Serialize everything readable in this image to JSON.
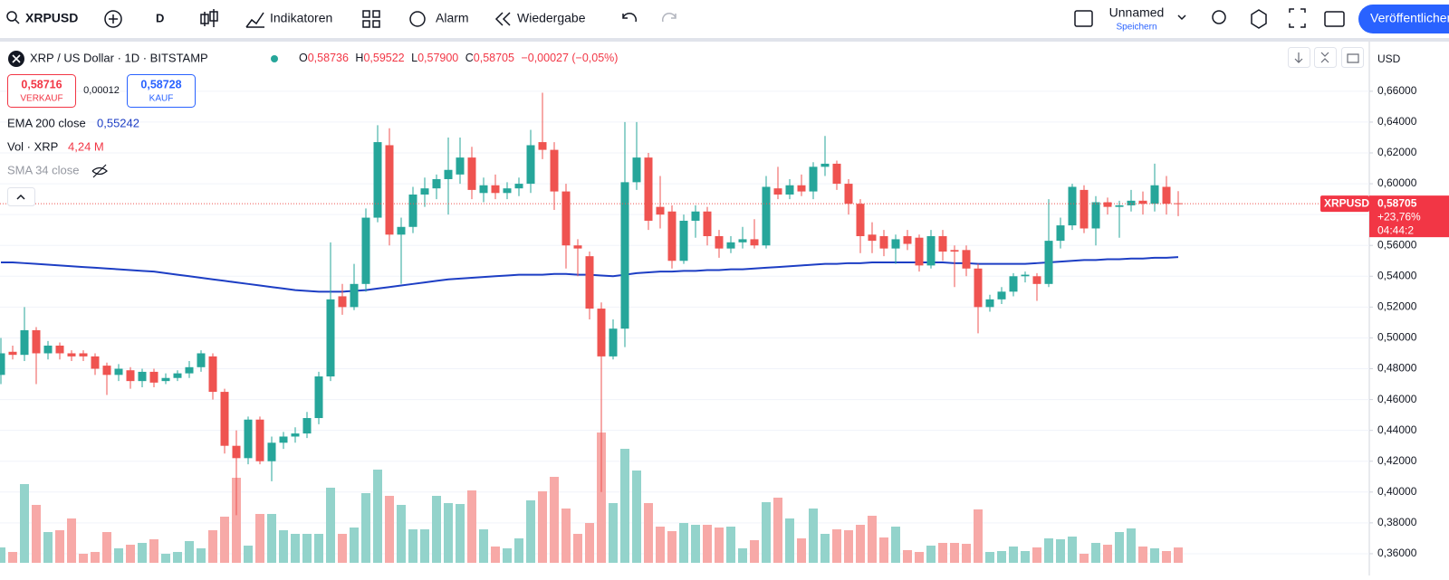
{
  "toolbar": {
    "symbol": "XRPUSD",
    "interval": "D",
    "indicators": "Indikatoren",
    "alert": "Alarm",
    "replay": "Wiedergabe",
    "layout_name": "Unnamed",
    "save": "Speichern",
    "publish": "Veröffentlichen"
  },
  "legend": {
    "title": "XRP / US Dollar · 1D · BITSTAMP",
    "ohlc": [
      {
        "key": "O",
        "value": "0,58736"
      },
      {
        "key": "H",
        "value": "0,59522"
      },
      {
        "key": "L",
        "value": "0,57900"
      },
      {
        "key": "C",
        "value": "0,58705"
      }
    ],
    "change": "−0,00027 (−0,05%)",
    "sell_price": "0,58716",
    "sell": "VERKAUF",
    "spread": "0,00012",
    "buy_price": "0,58728",
    "buy": "KAUF",
    "indicators": [
      {
        "name": "EMA 200 close",
        "value": "0,55242"
      },
      {
        "name": "Vol · XRP",
        "value": "4,24 M"
      },
      {
        "name": "SMA 34 close"
      }
    ]
  },
  "price_axis": {
    "currency": "USD",
    "last_symbol": "XRPUSD",
    "last_price": "0,58705",
    "last_change": "+23,76%",
    "countdown": "04:44:2"
  },
  "chart_data": {
    "type": "candlestick",
    "up_color": "#26a69a",
    "down_color": "#ef5350",
    "up_volume_color": "#93d3cb",
    "down_volume_color": "#f7a9a7",
    "ema_color": "#1d3ec4",
    "grid": true,
    "ylim": [
      0.3541,
      0.6922
    ],
    "yticks": [
      {
        "value": 0.66,
        "label": "0,66000"
      },
      {
        "value": 0.64,
        "label": "0,64000"
      },
      {
        "value": 0.62,
        "label": "0,62000"
      },
      {
        "value": 0.6,
        "label": "0,60000"
      },
      {
        "value": 0.58,
        "label": "0,58000"
      },
      {
        "value": 0.56,
        "label": "0,56000"
      },
      {
        "value": 0.54,
        "label": "0,54000"
      },
      {
        "value": 0.52,
        "label": "0,52000"
      },
      {
        "value": 0.5,
        "label": "0,50000"
      },
      {
        "value": 0.48,
        "label": "0,48000"
      },
      {
        "value": 0.46,
        "label": "0,46000"
      },
      {
        "value": 0.44,
        "label": "0,44000"
      },
      {
        "value": 0.42,
        "label": "0,42000"
      },
      {
        "value": 0.4,
        "label": "0,40000"
      },
      {
        "value": 0.38,
        "label": "0,38000"
      },
      {
        "value": 0.36,
        "label": "0,36000"
      }
    ],
    "open": [
      0.476,
      0.491,
      0.489,
      0.505,
      0.49,
      0.495,
      0.49,
      0.49,
      0.488,
      0.482,
      0.476,
      0.479,
      0.472,
      0.478,
      0.472,
      0.474,
      0.477,
      0.481,
      0.488,
      0.465,
      0.43,
      0.422,
      0.447,
      0.42,
      0.432,
      0.436,
      0.438,
      0.448,
      0.475,
      0.527,
      0.52,
      0.535,
      0.578,
      0.625,
      0.567,
      0.572,
      0.593,
      0.597,
      0.603,
      0.606,
      0.617,
      0.594,
      0.599,
      0.594,
      0.597,
      0.6,
      0.627,
      0.622,
      0.595,
      0.56,
      0.553,
      0.519,
      0.488,
      0.506,
      0.601,
      0.617,
      0.585,
      0.582,
      0.55,
      0.576,
      0.582,
      0.566,
      0.558,
      0.562,
      0.564,
      0.56,
      0.597,
      0.593,
      0.599,
      0.595,
      0.611,
      0.613,
      0.6,
      0.587,
      0.567,
      0.566,
      0.558,
      0.566,
      0.565,
      0.547,
      0.566,
      0.557,
      0.557,
      0.545,
      0.52,
      0.525,
      0.53,
      0.54,
      0.54,
      0.535,
      0.563,
      0.573,
      0.596,
      0.571,
      0.588,
      0.585,
      0.586,
      0.589,
      0.587,
      0.598,
      0.58736
    ],
    "high": [
      0.5,
      0.495,
      0.52,
      0.507,
      0.498,
      0.497,
      0.492,
      0.492,
      0.49,
      0.484,
      0.483,
      0.481,
      0.48,
      0.48,
      0.477,
      0.479,
      0.485,
      0.492,
      0.49,
      0.467,
      0.44,
      0.449,
      0.449,
      0.436,
      0.439,
      0.442,
      0.452,
      0.478,
      0.562,
      0.535,
      0.548,
      0.584,
      0.638,
      0.636,
      0.578,
      0.598,
      0.604,
      0.606,
      0.63,
      0.63,
      0.624,
      0.604,
      0.606,
      0.601,
      0.604,
      0.635,
      0.659,
      0.627,
      0.6,
      0.564,
      0.556,
      0.523,
      0.512,
      0.64,
      0.64,
      0.62,
      0.605,
      0.586,
      0.58,
      0.586,
      0.585,
      0.57,
      0.566,
      0.572,
      0.577,
      0.605,
      0.611,
      0.603,
      0.606,
      0.614,
      0.631,
      0.615,
      0.603,
      0.59,
      0.575,
      0.57,
      0.567,
      0.57,
      0.567,
      0.57,
      0.57,
      0.56,
      0.56,
      0.548,
      0.528,
      0.533,
      0.542,
      0.543,
      0.542,
      0.59,
      0.578,
      0.6,
      0.599,
      0.592,
      0.591,
      0.589,
      0.596,
      0.595,
      0.613,
      0.605,
      0.59522
    ],
    "low": [
      0.47,
      0.486,
      0.485,
      0.47,
      0.486,
      0.486,
      0.485,
      0.485,
      0.476,
      0.463,
      0.472,
      0.467,
      0.468,
      0.468,
      0.47,
      0.472,
      0.474,
      0.478,
      0.46,
      0.425,
      0.385,
      0.418,
      0.418,
      0.407,
      0.428,
      0.432,
      0.435,
      0.444,
      0.472,
      0.515,
      0.518,
      0.53,
      0.575,
      0.56,
      0.535,
      0.568,
      0.585,
      0.59,
      0.58,
      0.6,
      0.59,
      0.588,
      0.59,
      0.59,
      0.592,
      0.594,
      0.616,
      0.583,
      0.545,
      0.54,
      0.512,
      0.4,
      0.486,
      0.494,
      0.596,
      0.57,
      0.571,
      0.545,
      0.548,
      0.565,
      0.56,
      0.552,
      0.555,
      0.558,
      0.558,
      0.558,
      0.59,
      0.59,
      0.592,
      0.59,
      0.605,
      0.596,
      0.58,
      0.555,
      0.555,
      0.553,
      0.548,
      0.557,
      0.543,
      0.545,
      0.55,
      0.533,
      0.54,
      0.503,
      0.517,
      0.522,
      0.527,
      0.536,
      0.524,
      0.533,
      0.558,
      0.57,
      0.568,
      0.56,
      0.58,
      0.565,
      0.582,
      0.58,
      0.582,
      0.58,
      0.579
    ],
    "close": [
      0.49,
      0.489,
      0.505,
      0.49,
      0.495,
      0.49,
      0.488,
      0.488,
      0.48,
      0.476,
      0.48,
      0.472,
      0.478,
      0.471,
      0.474,
      0.477,
      0.481,
      0.49,
      0.465,
      0.43,
      0.422,
      0.447,
      0.42,
      0.432,
      0.436,
      0.438,
      0.448,
      0.475,
      0.525,
      0.52,
      0.535,
      0.578,
      0.627,
      0.567,
      0.572,
      0.593,
      0.597,
      0.603,
      0.609,
      0.617,
      0.596,
      0.599,
      0.594,
      0.597,
      0.6,
      0.625,
      0.622,
      0.595,
      0.56,
      0.558,
      0.519,
      0.488,
      0.506,
      0.601,
      0.617,
      0.576,
      0.58,
      0.55,
      0.576,
      0.582,
      0.566,
      0.558,
      0.562,
      0.564,
      0.56,
      0.598,
      0.593,
      0.599,
      0.595,
      0.611,
      0.613,
      0.6,
      0.587,
      0.566,
      0.563,
      0.558,
      0.564,
      0.561,
      0.547,
      0.566,
      0.556,
      0.556,
      0.545,
      0.52,
      0.525,
      0.53,
      0.54,
      0.541,
      0.535,
      0.563,
      0.573,
      0.598,
      0.571,
      0.588,
      0.585,
      0.586,
      0.589,
      0.587,
      0.599,
      0.587,
      0.58705
    ],
    "volume": [
      4.25,
      3,
      21.75,
      16,
      8.5,
      9,
      12.25,
      2.5,
      3,
      8.5,
      4,
      5,
      5.5,
      6.5,
      2.5,
      3,
      6,
      4,
      9,
      12.75,
      23.5,
      4.75,
      13.5,
      13.5,
      9,
      8,
      8,
      8,
      20.75,
      8,
      9.75,
      19.25,
      25.75,
      18.5,
      16,
      9.25,
      9.25,
      18.5,
      16.5,
      16.25,
      20,
      9.25,
      4.5,
      4,
      6.75,
      17.25,
      19.75,
      23.75,
      15,
      8,
      11,
      36,
      16.5,
      31.5,
      25.5,
      16.5,
      10,
      8.75,
      11,
      10.5,
      10.5,
      9.75,
      10,
      4,
      6.25,
      16.75,
      18,
      12.25,
      6.75,
      15,
      8,
      9.25,
      9,
      10.5,
      13,
      7,
      10,
      3.5,
      3,
      4.75,
      5.5,
      5.5,
      5.25,
      14.75,
      3,
      3.25,
      4.5,
      3.25,
      4.25,
      6.75,
      6.5,
      7.25,
      2.5,
      5.5,
      5,
      8.5,
      9.5,
      4.5,
      4,
      3.25,
      4.24
    ],
    "ema": [
      0.549,
      0.549,
      0.5485,
      0.548,
      0.5475,
      0.547,
      0.5465,
      0.546,
      0.5455,
      0.545,
      0.5445,
      0.544,
      0.5435,
      0.543,
      0.542,
      0.541,
      0.54,
      0.539,
      0.538,
      0.537,
      0.536,
      0.535,
      0.534,
      0.533,
      0.532,
      0.531,
      0.5305,
      0.53,
      0.53,
      0.53,
      0.5305,
      0.531,
      0.532,
      0.533,
      0.534,
      0.535,
      0.536,
      0.537,
      0.538,
      0.5385,
      0.539,
      0.5395,
      0.54,
      0.5405,
      0.541,
      0.541,
      0.541,
      0.5415,
      0.5415,
      0.541,
      0.541,
      0.5405,
      0.54,
      0.541,
      0.542,
      0.5425,
      0.543,
      0.543,
      0.5435,
      0.5435,
      0.544,
      0.544,
      0.5445,
      0.5445,
      0.545,
      0.5455,
      0.546,
      0.5465,
      0.547,
      0.5475,
      0.548,
      0.548,
      0.5485,
      0.5485,
      0.549,
      0.549,
      0.549,
      0.549,
      0.549,
      0.549,
      0.549,
      0.5485,
      0.5485,
      0.548,
      0.548,
      0.548,
      0.548,
      0.548,
      0.5485,
      0.549,
      0.5495,
      0.55,
      0.5505,
      0.5505,
      0.551,
      0.551,
      0.5515,
      0.5515,
      0.552,
      0.552,
      0.5524
    ]
  }
}
